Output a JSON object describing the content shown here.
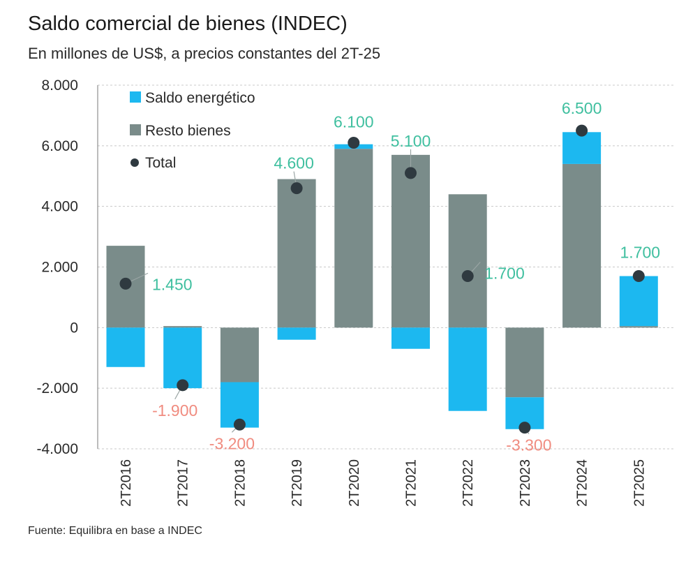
{
  "title": "Saldo comercial de bienes (INDEC)",
  "subtitle": "En millones de US$, a precios constantes del 2T-25",
  "source": "Fuente: Equilibra en base a INDEC",
  "colors": {
    "energy": "#1cb8f0",
    "rest": "#7a8c8a",
    "total": "#2f3a40",
    "positive_label": "#3fbf9f",
    "negative_label": "#f08c80",
    "grid": "#c8c8c8"
  },
  "chart_data": {
    "type": "bar",
    "stacked": true,
    "title": "Saldo comercial de bienes (INDEC)",
    "subtitle": "En millones de US$, a precios constantes del 2T-25",
    "xlabel": "",
    "ylabel": "",
    "ylim": [
      -4000,
      8000
    ],
    "yticks": [
      8000,
      6000,
      4000,
      2000,
      0,
      -2000,
      -4000
    ],
    "ytick_labels": [
      "8.000",
      "6.000",
      "4.000",
      "2.000",
      "0",
      "-2.000",
      "-4.000"
    ],
    "categories": [
      "2T2016",
      "2T2017",
      "2T2018",
      "2T2019",
      "2T2020",
      "2T2021",
      "2T2022",
      "2T2023",
      "2T2024",
      "2T2025"
    ],
    "series": [
      {
        "name": "Saldo energético",
        "kind": "bar",
        "values": [
          -1300,
          -2000,
          -1500,
          -400,
          150,
          -700,
          -2750,
          -1050,
          1050,
          1650
        ]
      },
      {
        "name": "Resto bienes",
        "kind": "bar",
        "values": [
          2700,
          50,
          -1800,
          4900,
          5900,
          5700,
          4400,
          -2300,
          5400,
          50
        ]
      },
      {
        "name": "Total",
        "kind": "point",
        "values": [
          1450,
          -1900,
          -3200,
          4600,
          6100,
          5100,
          1700,
          -3300,
          6500,
          1700
        ]
      }
    ],
    "data_labels": [
      "1.450",
      "-1.900",
      "-3.200",
      "4.600",
      "6.100",
      "5.100",
      "1.700",
      "-3.300",
      "6.500",
      "1.700"
    ],
    "legend": {
      "position": "top-left",
      "entries": [
        "Saldo energético",
        "Resto bienes",
        "Total"
      ]
    },
    "grid": true
  }
}
